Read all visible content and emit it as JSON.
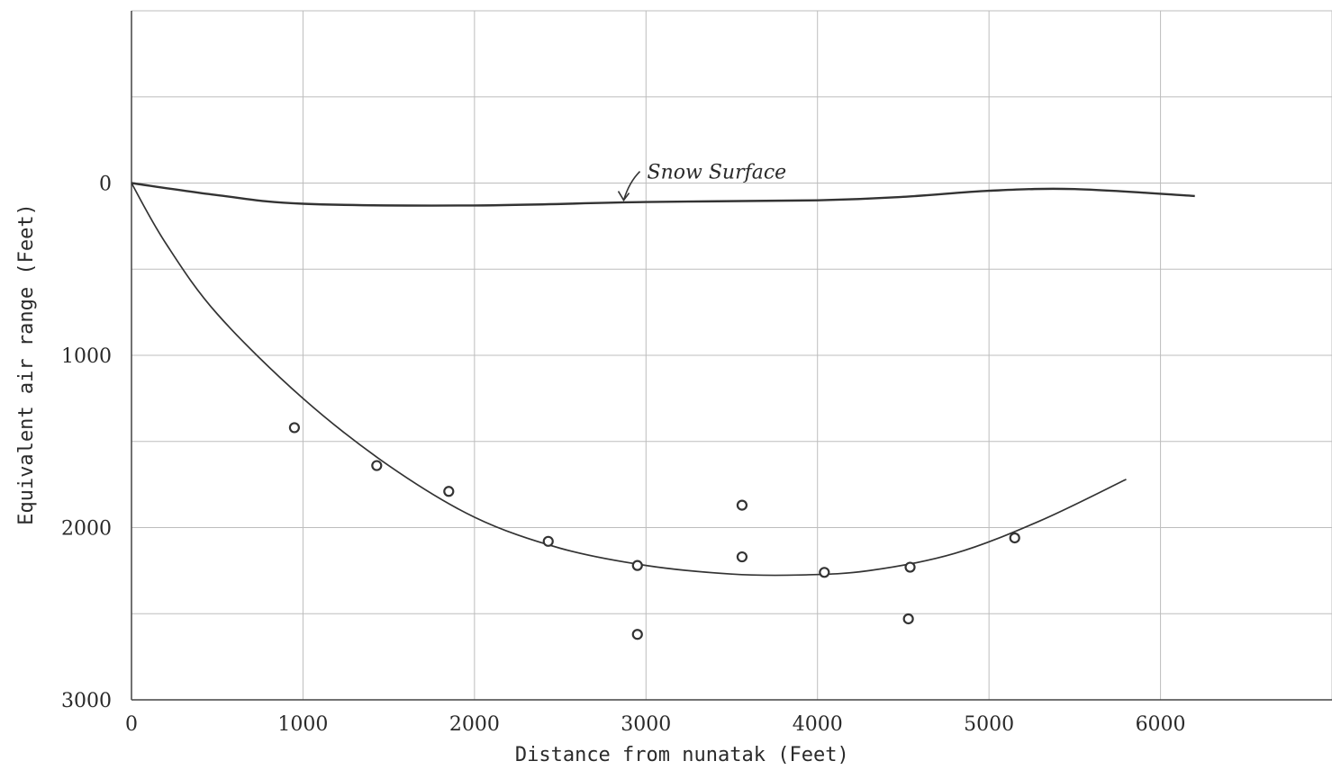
{
  "chart_data": {
    "type": "scatter",
    "title": "",
    "xlabel": "Distance from nunatak (Feet)",
    "ylabel": "Equivalent air range (Feet)",
    "xlim": [
      0,
      7000
    ],
    "ylim": [
      3000,
      -1000
    ],
    "y_inverted": true,
    "grid": true,
    "x_ticks": [
      0,
      1000,
      2000,
      3000,
      4000,
      5000,
      6000
    ],
    "x_tick_labels": [
      "0",
      "1000",
      "2000",
      "3000",
      "4000",
      "5000",
      "6000"
    ],
    "y_ticks": [
      0,
      1000,
      2000,
      3000
    ],
    "y_tick_labels": [
      "0",
      "1000",
      "2000",
      "3000"
    ],
    "x_grid": [
      0,
      1000,
      2000,
      3000,
      4000,
      5000,
      6000,
      7000
    ],
    "y_grid": [
      -1000,
      -500,
      0,
      500,
      1000,
      1500,
      2000,
      2500,
      3000
    ],
    "series": [
      {
        "name": "",
        "kind": "points",
        "marker": "open-circle",
        "x": [
          950,
          1430,
          1850,
          2430,
          2950,
          2950,
          3560,
          3560,
          4040,
          4540,
          4530,
          5150
        ],
        "y": [
          1420,
          1640,
          1790,
          2080,
          2220,
          2620,
          1870,
          2170,
          2260,
          2230,
          2530,
          2060
        ]
      },
      {
        "name": "",
        "kind": "curve",
        "x": [
          0,
          200,
          500,
          1000,
          1500,
          2000,
          2500,
          3000,
          3500,
          3900,
          4300,
          4800,
          5300,
          5800
        ],
        "y": [
          0,
          350,
          760,
          1250,
          1640,
          1940,
          2120,
          2220,
          2270,
          2275,
          2250,
          2150,
          1960,
          1720
        ]
      },
      {
        "name": "Snow Surface",
        "kind": "curve",
        "x": [
          0,
          500,
          1000,
          2000,
          3000,
          4000,
          4500,
          5000,
          5500,
          6200
        ],
        "y": [
          0,
          70,
          120,
          130,
          110,
          100,
          80,
          45,
          35,
          75
        ]
      }
    ],
    "annotations": [
      {
        "text": "Snow Surface",
        "target_x": 2870,
        "target_y": 110
      }
    ]
  }
}
